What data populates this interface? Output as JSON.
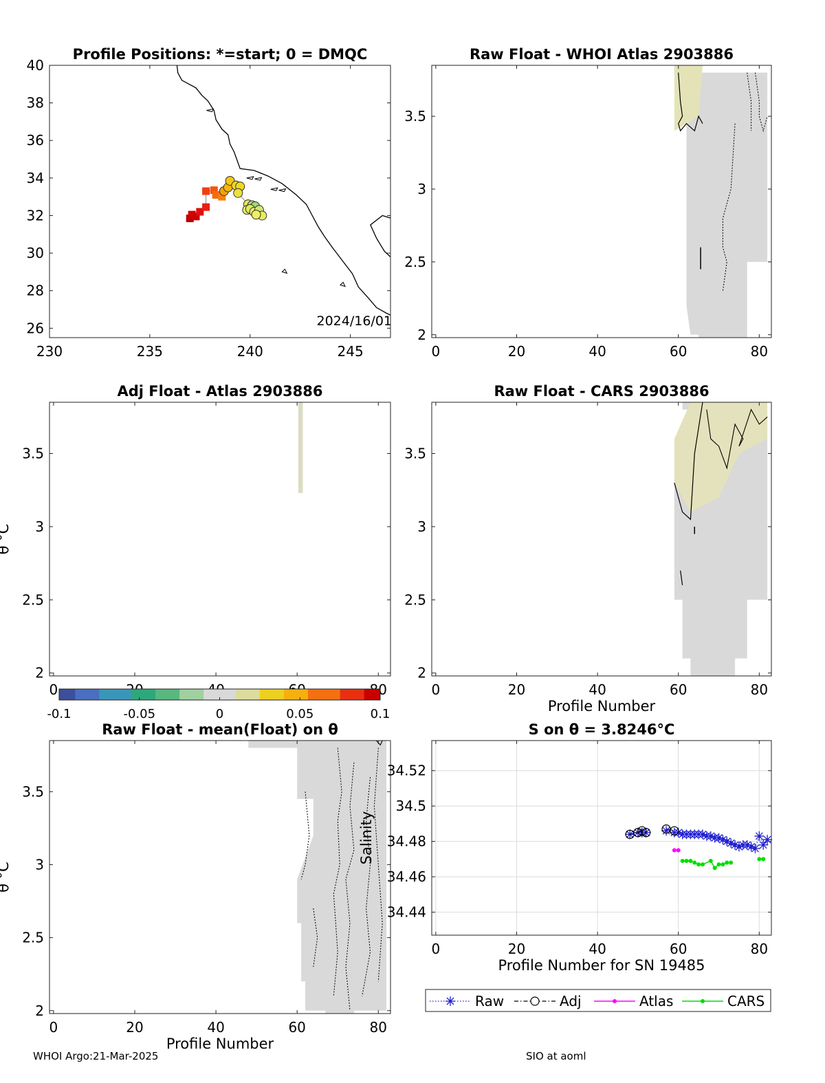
{
  "footer": {
    "left": "WHOI Argo:21-Mar-2025",
    "right": "SIO at aoml"
  },
  "colors": {
    "raw": "#1f1fd0",
    "adj": "#000000",
    "atlas": "#ff00ff",
    "cars": "#00dd00",
    "contour": "#000000",
    "field": "#d9d9d9"
  },
  "chart_data": [
    {
      "id": "map",
      "type": "scatter",
      "title": "Profile Positions: *=start; 0 = DMQC",
      "xlim": [
        230,
        247
      ],
      "ylim": [
        25.5,
        40
      ],
      "xticks": [
        230,
        235,
        240,
        245
      ],
      "yticks": [
        26,
        28,
        30,
        32,
        34,
        36,
        38,
        40
      ],
      "annotation": "2024/16/01",
      "squares": [
        {
          "lon": 237.0,
          "lat": 31.85,
          "color": "#b00000"
        },
        {
          "lon": 237.3,
          "lat": 31.95,
          "color": "#c80000"
        },
        {
          "lon": 237.1,
          "lat": 32.05,
          "color": "#d40000"
        },
        {
          "lon": 237.5,
          "lat": 32.2,
          "color": "#e01010"
        },
        {
          "lon": 237.8,
          "lat": 32.45,
          "color": "#e82010"
        },
        {
          "lon": 237.8,
          "lat": 33.3,
          "color": "#f04010"
        },
        {
          "lon": 238.2,
          "lat": 33.35,
          "color": "#f45510"
        },
        {
          "lon": 238.3,
          "lat": 33.1,
          "color": "#f66a10"
        },
        {
          "lon": 238.6,
          "lat": 33.0,
          "color": "#f77f10"
        }
      ],
      "circles": [
        {
          "lon": 238.7,
          "lat": 33.3,
          "color": "#f7a010"
        },
        {
          "lon": 238.9,
          "lat": 33.5,
          "color": "#f5b510"
        },
        {
          "lon": 239.0,
          "lat": 33.85,
          "color": "#f2c810"
        },
        {
          "lon": 239.3,
          "lat": 33.6,
          "color": "#f0d820"
        },
        {
          "lon": 239.5,
          "lat": 33.55,
          "color": "#f0d820"
        },
        {
          "lon": 239.4,
          "lat": 33.2,
          "color": "#ece040"
        },
        {
          "lon": 239.9,
          "lat": 32.6,
          "color": "#e8e650"
        },
        {
          "lon": 239.85,
          "lat": 32.3,
          "color": "#e4ea60"
        },
        {
          "lon": 240.1,
          "lat": 32.55,
          "color": "#b8e070"
        },
        {
          "lon": 240.25,
          "lat": 32.5,
          "color": "#a0d880"
        },
        {
          "lon": 240.0,
          "lat": 32.35,
          "color": "#dcec60"
        },
        {
          "lon": 240.2,
          "lat": 32.2,
          "color": "#e8ee60"
        },
        {
          "lon": 240.45,
          "lat": 32.3,
          "color": "#d0e870"
        },
        {
          "lon": 240.6,
          "lat": 32.0,
          "color": "#e6ec60"
        },
        {
          "lon": 240.3,
          "lat": 32.05,
          "color": "#eef060"
        }
      ]
    },
    {
      "id": "whoi",
      "type": "heatmap",
      "title": "Raw Float - WHOI Atlas  2903886",
      "xlim": [
        -1,
        83
      ],
      "ylim": [
        1.98,
        3.85
      ],
      "xticks": [
        0,
        20,
        40,
        60,
        80
      ],
      "yticks": [
        2,
        2.5,
        3,
        3.5
      ]
    },
    {
      "id": "adj",
      "type": "heatmap",
      "title": "Adj Float - Atlas  2903886",
      "ylabel": "θ °C",
      "xlim": [
        -1,
        83
      ],
      "ylim": [
        1.98,
        3.85
      ],
      "xticks": [
        0,
        20,
        40,
        60,
        80
      ],
      "yticks": [
        2,
        2.5,
        3,
        3.5
      ]
    },
    {
      "id": "cars",
      "type": "heatmap",
      "title": "Raw Float - CARS  2903886",
      "xlabel": "Profile Number",
      "xlim": [
        -1,
        83
      ],
      "ylim": [
        1.98,
        3.85
      ],
      "xticks": [
        0,
        20,
        40,
        60,
        80
      ],
      "yticks": [
        2,
        2.5,
        3,
        3.5
      ]
    },
    {
      "id": "colorbar",
      "type": "heatmap",
      "range": [
        -0.1,
        0.1
      ],
      "tick_labels": [
        "-0.1",
        "-0.05",
        "0",
        "0.05",
        "0.1"
      ]
    },
    {
      "id": "mean",
      "type": "heatmap",
      "title": "Raw Float - mean(Float) on θ",
      "xlabel": "Profile Number",
      "ylabel": "θ °C",
      "xlim": [
        -1,
        83
      ],
      "ylim": [
        1.98,
        3.85
      ],
      "xticks": [
        0,
        20,
        40,
        60,
        80
      ],
      "yticks": [
        2,
        2.5,
        3,
        3.5
      ]
    },
    {
      "id": "salinity",
      "type": "line",
      "title": "S on θ = 3.8246°C",
      "xlabel": "Profile Number for SN 19485",
      "ylabel": "Salinity",
      "xlim": [
        -1,
        83
      ],
      "ylim": [
        34.427,
        34.537
      ],
      "xticks": [
        0,
        20,
        40,
        60,
        80
      ],
      "yticks": [
        34.44,
        34.46,
        34.48,
        34.5,
        34.52
      ],
      "grid": true,
      "legend": "bottom",
      "series": [
        {
          "name": "Raw",
          "x": [
            48,
            50,
            51,
            52,
            57,
            59,
            60,
            61,
            62,
            63,
            64,
            65,
            66,
            67,
            68,
            69,
            70,
            71,
            72,
            73,
            74,
            75,
            76,
            77,
            78,
            79,
            80,
            81,
            82
          ],
          "y": [
            34.484,
            34.485,
            34.485,
            34.485,
            34.486,
            34.485,
            34.485,
            34.484,
            34.484,
            34.484,
            34.484,
            34.484,
            34.484,
            34.483,
            34.483,
            34.482,
            34.482,
            34.481,
            34.48,
            34.479,
            34.478,
            34.477,
            34.478,
            34.478,
            34.477,
            34.476,
            34.483,
            34.478,
            34.481
          ]
        },
        {
          "name": "Adj",
          "x": [
            48,
            50,
            51,
            52,
            57,
            59
          ],
          "y": [
            34.484,
            34.485,
            34.486,
            34.485,
            34.487,
            34.486
          ]
        },
        {
          "name": "Atlas",
          "x": [
            59,
            60
          ],
          "y": [
            34.475,
            34.475
          ]
        },
        {
          "name": "CARS",
          "x": [
            61,
            62,
            63,
            64,
            65,
            66,
            68,
            69,
            70,
            71,
            72,
            73,
            80,
            81
          ],
          "y": [
            34.469,
            34.469,
            34.469,
            34.468,
            34.467,
            34.467,
            34.469,
            34.465,
            34.467,
            34.467,
            34.468,
            34.468,
            34.47,
            34.47
          ]
        }
      ]
    }
  ]
}
